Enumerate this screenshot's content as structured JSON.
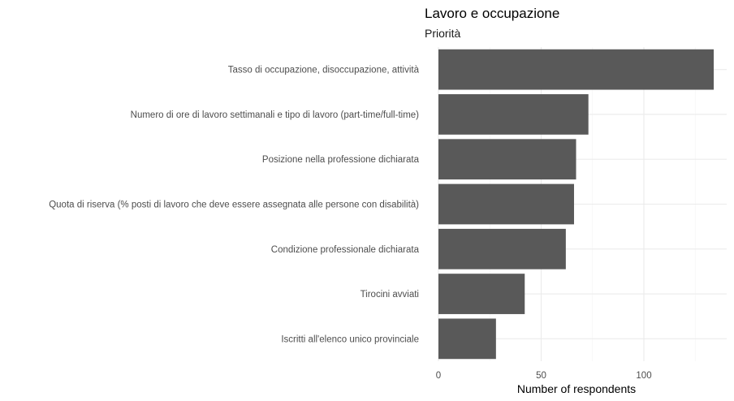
{
  "chart_data": {
    "type": "bar",
    "orientation": "horizontal",
    "title": "Lavoro e occupazione",
    "subtitle": "Priorità",
    "xlabel": "Number of respondents",
    "ylabel": "",
    "categories": [
      "Tasso di occupazione, disoccupazione, attività",
      "Numero di ore di lavoro settimanali e tipo di lavoro (part-time/full-time)",
      "Posizione nella professione dichiarata",
      "Quota di riserva (% posti di lavoro che deve essere assegnata alle persone con disabilità)",
      "Condizione professionale dichiarata",
      "Tirocini avviati",
      "Iscritti all'elenco unico provinciale"
    ],
    "values": [
      134,
      73,
      67,
      66,
      62,
      42,
      28
    ],
    "xlim": [
      0,
      140
    ],
    "xticks": [
      0,
      50,
      100
    ],
    "xtick_labels": [
      "0",
      "50",
      "100"
    ],
    "grid": true,
    "legend": "none",
    "colors": {
      "bar": "#595959",
      "grid_major": "#ebebeb",
      "grid_minor": "#f4f4f4",
      "background": "#ffffff"
    }
  }
}
